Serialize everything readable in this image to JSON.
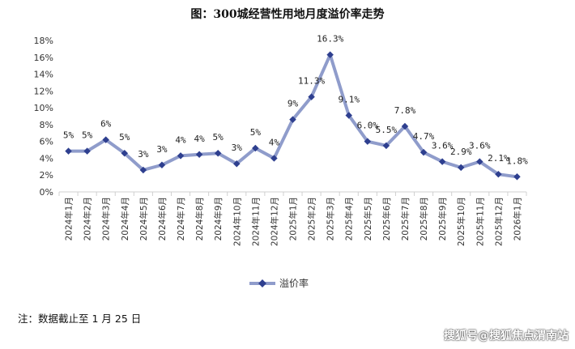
{
  "chart_data": {
    "type": "line",
    "title": "图：300城经营性用地月度溢价率走势",
    "xlabel": "",
    "ylabel": "",
    "ylim": [
      0,
      18
    ],
    "yticks": [
      "0%",
      "2%",
      "4%",
      "6%",
      "8%",
      "10%",
      "12%",
      "14%",
      "16%",
      "18%"
    ],
    "grid": false,
    "legend_position": "bottom",
    "categories": [
      "2024年1月",
      "2024年2月",
      "2024年3月",
      "2024年4月",
      "2024年5月",
      "2024年6月",
      "2024年7月",
      "2024年8月",
      "2024年9月",
      "2024年10月",
      "2024年11月",
      "2024年12月",
      "2025年1月",
      "2025年2月",
      "2025年3月",
      "2025年4月",
      "2025年5月",
      "2025年6月",
      "2025年7月",
      "2025年8月",
      "2025年9月",
      "2025年10月",
      "2025年11月",
      "2025年12月",
      "2026年1月"
    ],
    "series": [
      {
        "name": "溢价率",
        "color": "#8f9ccb",
        "marker_color": "#2e3f8f",
        "values": [
          4.85,
          4.85,
          6.2,
          4.6,
          2.6,
          3.2,
          4.3,
          4.45,
          4.6,
          3.35,
          5.2,
          4.0,
          8.6,
          11.3,
          16.3,
          9.1,
          6.0,
          5.5,
          7.8,
          4.7,
          3.6,
          2.9,
          3.6,
          2.1,
          1.8
        ],
        "labels": [
          "5%",
          "5%",
          "6%",
          "5%",
          "3%",
          "3%",
          "4%",
          "4%",
          "5%",
          "3%",
          "5%",
          "4%",
          "9%",
          "11.3%",
          "16.3%",
          "9.1%",
          "6.0%",
          "5.5%",
          "7.8%",
          "4.7%",
          "3.6%",
          "2.9%",
          "3.6%",
          "2.1%",
          "1.8%"
        ]
      }
    ]
  },
  "note": "注：数据截止至 1 月 25 日",
  "watermark": "搜狐号@搜狐焦点渭南站"
}
